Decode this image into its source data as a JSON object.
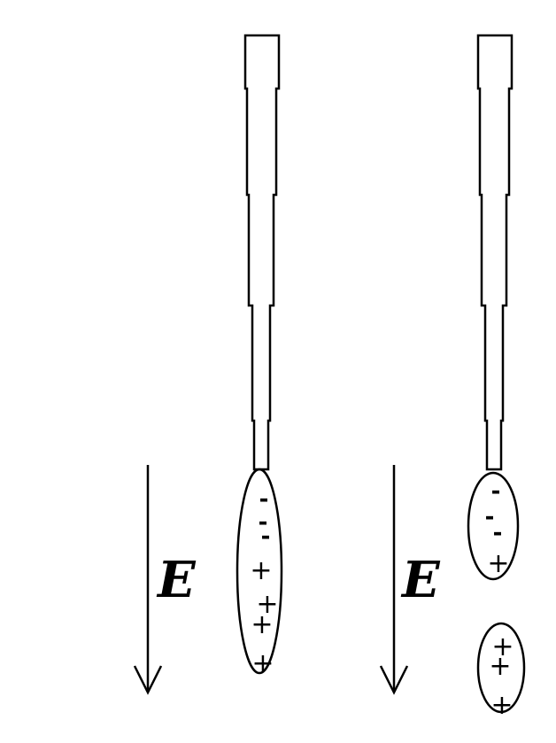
{
  "panels": [
    {
      "id": "left",
      "field_label": "E",
      "drops": [
        {
          "charges": [
            "-",
            "-",
            "-",
            "+",
            "+",
            "+",
            "+"
          ]
        }
      ]
    },
    {
      "id": "right",
      "field_label": "E",
      "drops": [
        {
          "charges": [
            "-",
            "-",
            "-",
            "+"
          ]
        },
        {
          "charges": [
            "+",
            "+",
            "+"
          ]
        }
      ]
    }
  ],
  "colors": {
    "ink": "#000000",
    "background": "#ffffff"
  }
}
